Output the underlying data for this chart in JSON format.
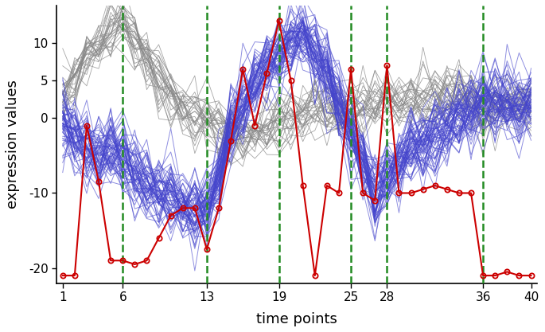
{
  "x_ticks": [
    1,
    6,
    13,
    19,
    25,
    28,
    36,
    40
  ],
  "vlines": [
    6,
    13,
    19,
    25,
    28,
    36
  ],
  "red_line": [
    -21,
    -21,
    -1,
    -8.5,
    -19,
    -19,
    -19.5,
    -19,
    -16,
    -13,
    -12,
    -12,
    -17.5,
    -12,
    -3,
    6.5,
    -1,
    6,
    13,
    5,
    -9,
    -21,
    -9,
    -10,
    6.5,
    -10,
    -11,
    7,
    -10,
    -10,
    -9.5,
    -9,
    -9.5,
    -10,
    -10,
    -21,
    -21,
    -20.5,
    -21,
    -21
  ],
  "ylim": [
    -22,
    15
  ],
  "xlabel": "time points",
  "ylabel": "expression values",
  "blue_color": "#4444cc",
  "gray_color": "#888888",
  "red_color": "#cc0000",
  "green_vline_color": "#228B22",
  "background": "#ffffff",
  "n_blue": 60,
  "n_gray": 30,
  "seed": 42,
  "fig_width": 6.85,
  "fig_height": 4.17,
  "dpi": 100,
  "blue_base": [
    -1,
    -3,
    -4,
    -5,
    -4,
    -5,
    -7,
    -9,
    -10,
    -11,
    -12,
    -13,
    -12,
    -8,
    -2,
    2,
    5,
    7,
    8,
    10,
    11,
    9,
    6,
    2,
    -2,
    -6,
    -10,
    -8,
    -6,
    -4,
    -3,
    -2,
    -1,
    0,
    1,
    2,
    2,
    2,
    1,
    2
  ],
  "gray_base": [
    3,
    5,
    8,
    10,
    12,
    13,
    10,
    7,
    5,
    3,
    1,
    0,
    0,
    -1,
    -2,
    -3,
    -2,
    -1,
    0,
    0,
    0,
    1,
    1,
    1,
    1,
    2,
    2,
    2,
    2,
    2,
    3,
    3,
    3,
    3,
    2,
    1,
    2,
    2,
    2,
    2
  ],
  "blue_noise_std": 2.5,
  "gray_noise_std": 2.0,
  "yticks": [
    -20,
    -10,
    0,
    5,
    10
  ],
  "ytick_labels": [
    "-20",
    "-10",
    "0",
    "5",
    "10"
  ]
}
